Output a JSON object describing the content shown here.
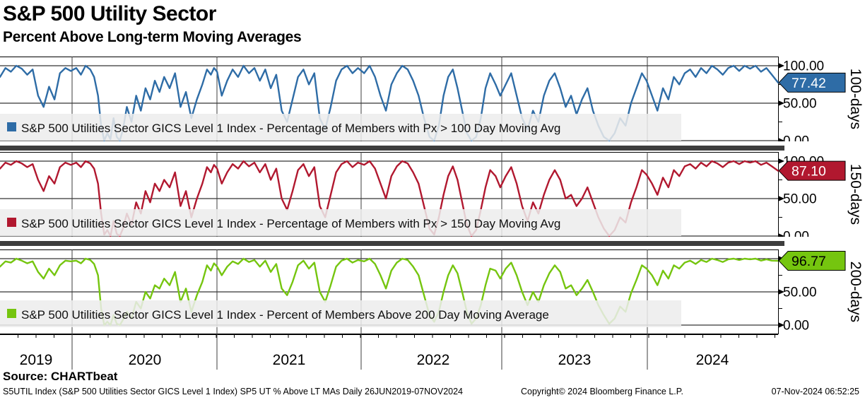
{
  "header": {
    "title": "S&P 500 Utility Sector",
    "subtitle": "Percent Above Long-term Moving Averages"
  },
  "axis": {
    "years": [
      "2019",
      "2020",
      "2021",
      "2022",
      "2023",
      "2024"
    ],
    "y_tick_labels": [
      "100.00",
      "50.00",
      "0.00"
    ],
    "y_tick_values": [
      100,
      50,
      0
    ],
    "y_minor_tick_values": [
      75,
      25
    ]
  },
  "footer": {
    "source": "Source: CHARTbeat",
    "left": "S5UTIL Index (S&P 500 Utilities Sector GICS Level 1 Index) SP5 UT % Above LT MAs  Daily 26JUN2019-07NOV2024",
    "copyright": "Copyright© 2024 Bloomberg Finance L.P.",
    "timestamp": "07-Nov-2024 06:52:25"
  },
  "chart_data": {
    "type": "line",
    "title": "S&P 500 Utility Sector - Percent Above Long-term Moving Averages",
    "x_range": [
      "26JUN2019",
      "07NOV2024"
    ],
    "ylim": [
      0,
      100
    ],
    "grid": true,
    "x": [
      0,
      0.007,
      0.014,
      0.021,
      0.028,
      0.035,
      0.042,
      0.049,
      0.056,
      0.063,
      0.07,
      0.077,
      0.084,
      0.091,
      0.098,
      0.104,
      0.11,
      0.116,
      0.121,
      0.126,
      0.13,
      0.134,
      0.138,
      0.142,
      0.146,
      0.15,
      0.154,
      0.158,
      0.163,
      0.169,
      0.175,
      0.181,
      0.187,
      0.193,
      0.199,
      0.205,
      0.211,
      0.218,
      0.225,
      0.232,
      0.239,
      0.246,
      0.253,
      0.26,
      0.266,
      0.271,
      0.275,
      0.279,
      0.285,
      0.292,
      0.299,
      0.306,
      0.313,
      0.32,
      0.327,
      0.334,
      0.341,
      0.348,
      0.355,
      0.362,
      0.369,
      0.376,
      0.383,
      0.39,
      0.397,
      0.404,
      0.411,
      0.418,
      0.425,
      0.432,
      0.439,
      0.446,
      0.453,
      0.46,
      0.468,
      0.475,
      0.482,
      0.489,
      0.496,
      0.503,
      0.51,
      0.517,
      0.524,
      0.531,
      0.538,
      0.545,
      0.552,
      0.558,
      0.564,
      0.57,
      0.576,
      0.582,
      0.588,
      0.594,
      0.6,
      0.606,
      0.612,
      0.618,
      0.624,
      0.63,
      0.637,
      0.643,
      0.65,
      0.657,
      0.664,
      0.671,
      0.678,
      0.685,
      0.692,
      0.699,
      0.706,
      0.713,
      0.72,
      0.727,
      0.734,
      0.741,
      0.748,
      0.755,
      0.762,
      0.769,
      0.776,
      0.783,
      0.79,
      0.797,
      0.804,
      0.811,
      0.818,
      0.825,
      0.831,
      0.838,
      0.845,
      0.852,
      0.859,
      0.866,
      0.873,
      0.88,
      0.887,
      0.894,
      0.901,
      0.908,
      0.915,
      0.922,
      0.929,
      0.936,
      0.943,
      0.95,
      0.957,
      0.964,
      0.971,
      0.978,
      0.985,
      0.992,
      1.0
    ],
    "panels": [
      {
        "side_label": "100-days",
        "legend": "S&P 500 Utilities Sector GICS Level 1 Index - Percentage of Members with Px > 100 Day Moving Avg",
        "color": "#2e6ca6",
        "last_value": 77.42,
        "last_value_label": "77.42",
        "tag_text_color": "#ffffff",
        "values": [
          85,
          97,
          92,
          100,
          96,
          88,
          95,
          60,
          45,
          72,
          55,
          90,
          97,
          93,
          97,
          88,
          100,
          95,
          85,
          60,
          20,
          0,
          10,
          2,
          30,
          5,
          0,
          15,
          45,
          25,
          60,
          40,
          70,
          55,
          80,
          65,
          85,
          70,
          90,
          45,
          65,
          30,
          55,
          75,
          95,
          88,
          97,
          92,
          60,
          80,
          95,
          85,
          100,
          90,
          97,
          80,
          95,
          70,
          88,
          40,
          25,
          55,
          85,
          95,
          75,
          90,
          30,
          15,
          45,
          80,
          95,
          100,
          90,
          97,
          90,
          100,
          85,
          60,
          40,
          75,
          90,
          100,
          95,
          80,
          60,
          30,
          5,
          0,
          20,
          60,
          85,
          95,
          70,
          40,
          10,
          0,
          5,
          30,
          70,
          90,
          75,
          60,
          75,
          90,
          60,
          30,
          15,
          40,
          25,
          60,
          80,
          90,
          70,
          45,
          60,
          35,
          55,
          70,
          40,
          20,
          5,
          0,
          10,
          30,
          20,
          50,
          70,
          90,
          80,
          60,
          40,
          70,
          55,
          85,
          75,
          90,
          95,
          85,
          97,
          90,
          100,
          95,
          88,
          97,
          100,
          93,
          100,
          96,
          100,
          92,
          97,
          88,
          77.42
        ]
      },
      {
        "side_label": "150-days",
        "legend": "S&P 500 Utilities Sector GICS Level 1 Index - Percentage of Members with Px > 150 Day Moving Avg",
        "color": "#b1182f",
        "last_value": 87.1,
        "last_value_label": "87.10",
        "tag_text_color": "#ffffff",
        "values": [
          90,
          98,
          95,
          100,
          97,
          92,
          96,
          75,
          60,
          80,
          70,
          92,
          98,
          95,
          98,
          92,
          100,
          97,
          90,
          70,
          30,
          2,
          8,
          0,
          20,
          3,
          0,
          10,
          30,
          15,
          45,
          30,
          60,
          45,
          70,
          60,
          75,
          65,
          85,
          40,
          60,
          25,
          50,
          70,
          92,
          85,
          95,
          90,
          70,
          85,
          96,
          90,
          100,
          93,
          98,
          85,
          96,
          75,
          90,
          50,
          35,
          60,
          88,
          96,
          80,
          92,
          40,
          25,
          55,
          85,
          96,
          100,
          92,
          98,
          95,
          100,
          90,
          70,
          50,
          80,
          93,
          100,
          97,
          85,
          70,
          40,
          10,
          2,
          25,
          55,
          80,
          93,
          75,
          45,
          15,
          0,
          8,
          35,
          65,
          88,
          80,
          65,
          80,
          92,
          70,
          40,
          20,
          45,
          30,
          55,
          75,
          88,
          75,
          50,
          55,
          40,
          50,
          65,
          45,
          25,
          10,
          0,
          8,
          25,
          18,
          45,
          65,
          88,
          82,
          70,
          55,
          78,
          65,
          88,
          80,
          93,
          96,
          90,
          98,
          93,
          100,
          97,
          92,
          98,
          100,
          96,
          100,
          98,
          100,
          95,
          98,
          93,
          87.1
        ]
      },
      {
        "side_label": "200-days",
        "legend": "S&P 500 Utilities Sector GICS Level 1 Index - Percent of Members Above 200 Day Moving Average",
        "color": "#75c50f",
        "last_value": 96.77,
        "last_value_label": "96.77",
        "tag_text_color": "#000000",
        "values": [
          88,
          96,
          94,
          100,
          97,
          93,
          96,
          80,
          70,
          85,
          75,
          90,
          97,
          96,
          97,
          93,
          100,
          98,
          92,
          75,
          25,
          0,
          5,
          0,
          15,
          2,
          0,
          8,
          20,
          10,
          35,
          25,
          50,
          40,
          60,
          55,
          70,
          60,
          80,
          35,
          55,
          20,
          45,
          65,
          90,
          82,
          93,
          88,
          75,
          88,
          96,
          92,
          100,
          95,
          98,
          88,
          97,
          80,
          92,
          55,
          45,
          65,
          90,
          97,
          85,
          94,
          50,
          35,
          60,
          88,
          97,
          100,
          94,
          98,
          96,
          100,
          92,
          75,
          55,
          82,
          94,
          100,
          98,
          88,
          75,
          45,
          15,
          5,
          20,
          50,
          75,
          90,
          78,
          50,
          20,
          2,
          10,
          30,
          60,
          85,
          82,
          70,
          85,
          94,
          75,
          50,
          30,
          50,
          35,
          60,
          78,
          90,
          80,
          55,
          60,
          45,
          55,
          68,
          50,
          30,
          15,
          2,
          10,
          28,
          20,
          48,
          68,
          90,
          85,
          75,
          60,
          82,
          70,
          90,
          85,
          94,
          97,
          92,
          98,
          95,
          100,
          98,
          95,
          99,
          100,
          98,
          100,
          99,
          100,
          97,
          99,
          97,
          96.77
        ]
      }
    ]
  }
}
